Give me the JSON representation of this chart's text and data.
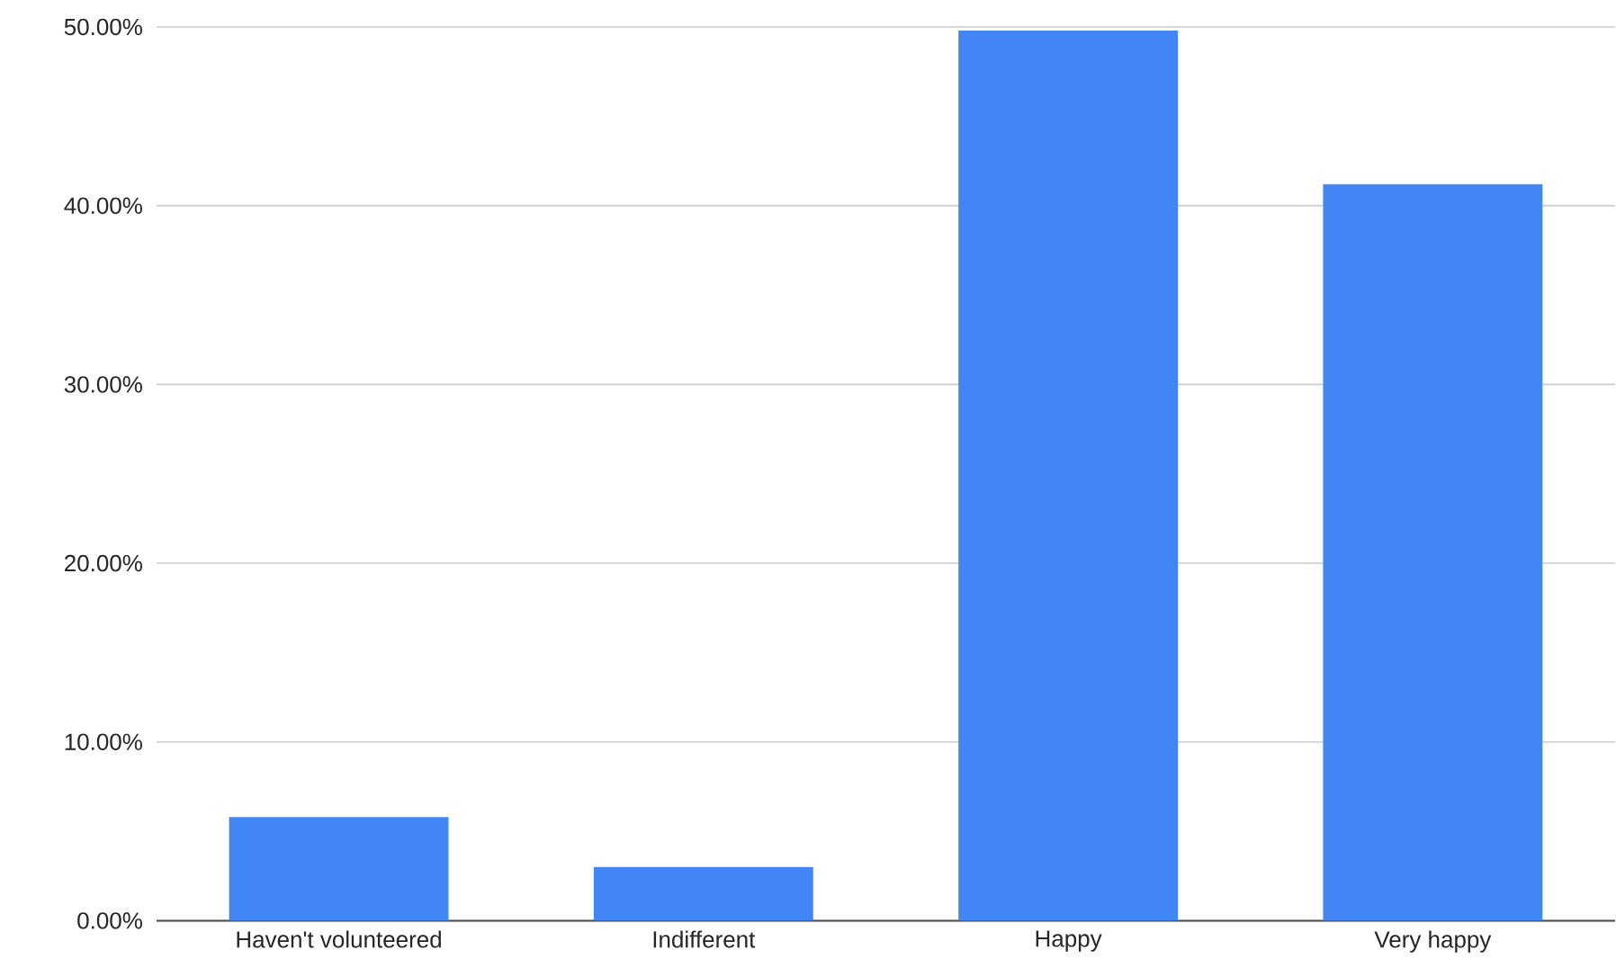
{
  "chart_data": {
    "type": "bar",
    "categories": [
      "Haven't volunteered",
      "Indifferent",
      "Happy",
      "Very happy"
    ],
    "values": [
      5.8,
      3.0,
      49.8,
      41.2
    ],
    "color": "#4285f4",
    "ylim": [
      0,
      50
    ],
    "yticks": [
      {
        "value": 0,
        "label": "0.00%"
      },
      {
        "value": 10,
        "label": "10.00%"
      },
      {
        "value": 20,
        "label": "20.00%"
      },
      {
        "value": 30,
        "label": "30.00%"
      },
      {
        "value": 40,
        "label": "40.00%"
      },
      {
        "value": 50,
        "label": "50.00%"
      }
    ],
    "grid": "y"
  }
}
